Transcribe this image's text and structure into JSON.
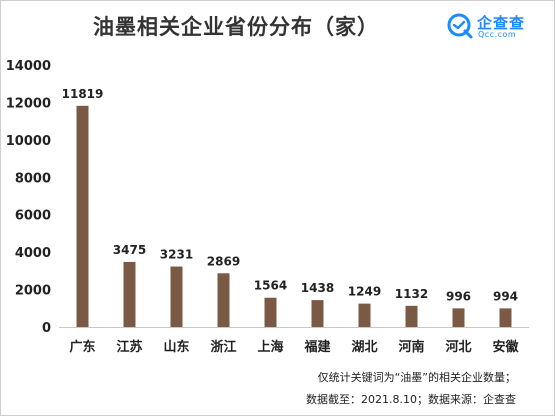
{
  "header": {
    "title": "油墨相关企业省份分布（家）"
  },
  "logo": {
    "name_cn": "企查查",
    "name_en": "Qcc.com",
    "accent": "#1a8cff"
  },
  "footnotes": {
    "line1": "仅统计关键词为“油墨”的相关企业数量；",
    "line2": "数据截至：2021.8.10；数据来源：企查查"
  },
  "chart_data": {
    "type": "bar",
    "title": "油墨相关企业省份分布（家）",
    "categories": [
      "广东",
      "江苏",
      "山东",
      "浙江",
      "上海",
      "福建",
      "湖北",
      "河南",
      "河北",
      "安徽"
    ],
    "values": [
      11819,
      3475,
      3231,
      2869,
      1564,
      1438,
      1249,
      1132,
      996,
      994
    ],
    "ylim": [
      0,
      14000
    ],
    "yticks": [
      0,
      2000,
      4000,
      6000,
      8000,
      10000,
      12000,
      14000
    ],
    "bar_color": "#7a5a44",
    "grid": false,
    "data_labels": true
  }
}
